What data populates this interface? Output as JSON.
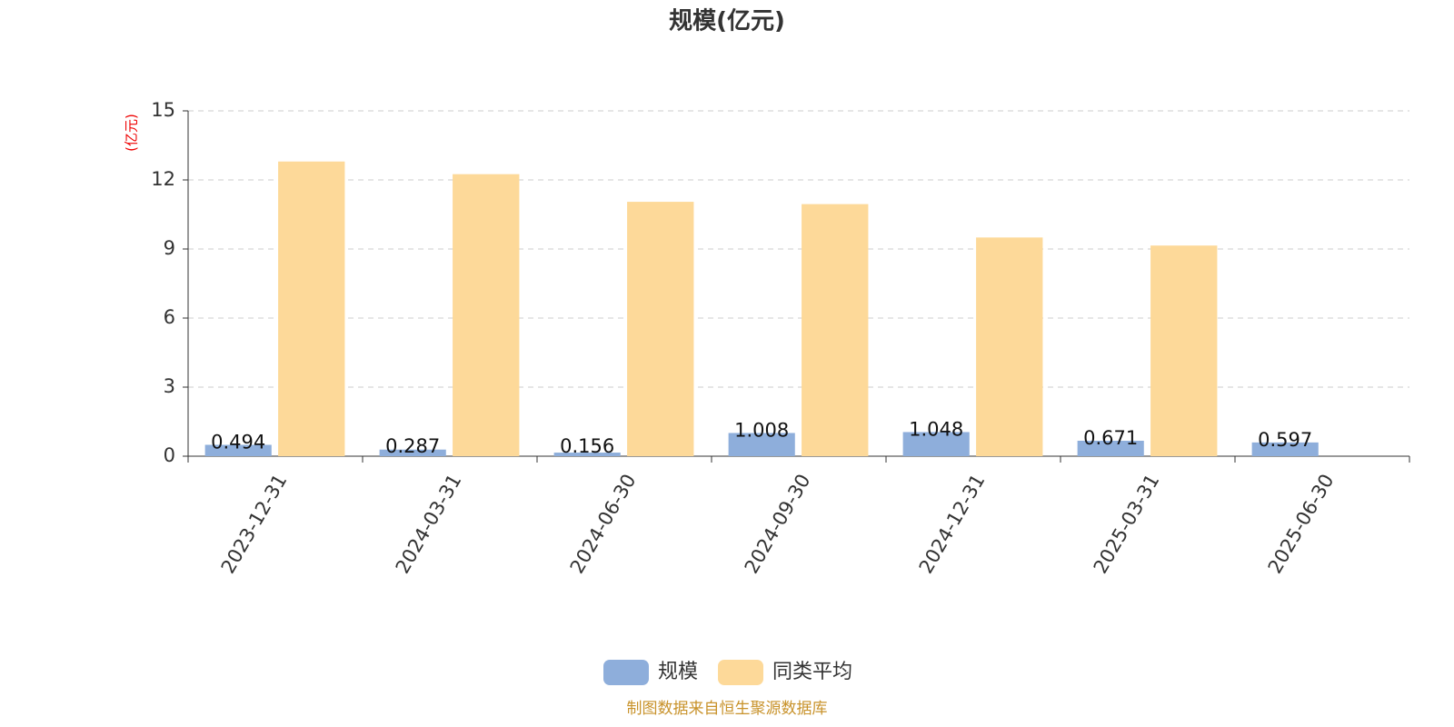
{
  "chart_data": {
    "type": "bar",
    "title": "规模(亿元)",
    "y_axis_label": "(亿元)",
    "categories": [
      "2023-12-31",
      "2024-03-31",
      "2024-06-30",
      "2024-09-30",
      "2024-12-31",
      "2025-03-31",
      "2025-06-30"
    ],
    "series": [
      {
        "name": "规模",
        "color": "#8eaedb",
        "values": [
          0.494,
          0.287,
          0.156,
          1.008,
          1.048,
          0.671,
          0.597
        ]
      },
      {
        "name": "同类平均",
        "color": "#fdd999",
        "values": [
          12.8,
          12.25,
          11.05,
          10.95,
          9.5,
          9.15,
          null
        ]
      }
    ],
    "ylim": [
      0,
      15
    ],
    "yticks": [
      0,
      3,
      6,
      9,
      12,
      15
    ],
    "grid": true,
    "legend": "bottom",
    "source": "制图数据来自恒生聚源数据库"
  }
}
